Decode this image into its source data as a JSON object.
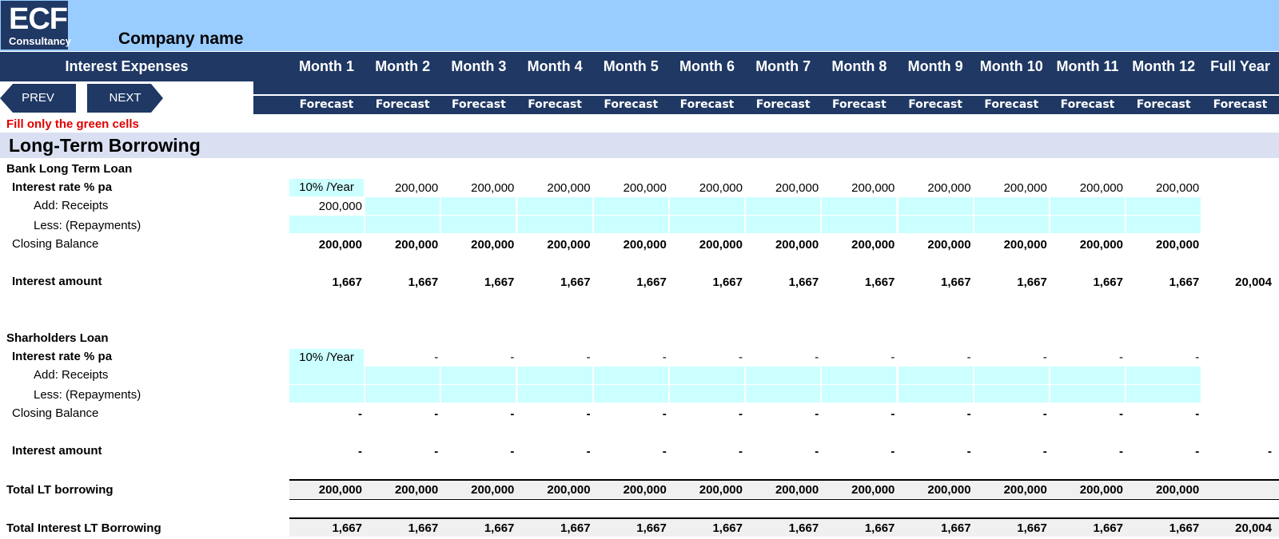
{
  "header": {
    "logo_big": "ECF",
    "logo_small": "Consultancy",
    "company": "Company name",
    "title": "Interest Expenses",
    "months": [
      "Month 1",
      "Month 2",
      "Month 3",
      "Month 4",
      "Month 5",
      "Month 6",
      "Month 7",
      "Month 8",
      "Month 9",
      "Month 10",
      "Month 11",
      "Month 12",
      "Full Year"
    ],
    "forecast_label": "Forecast",
    "prev": "PREV",
    "next": "NEXT"
  },
  "note": "Fill only the green cells",
  "section_title": "Long-Term Borrowing",
  "labels": {
    "bank_loan": "Bank Long Term Loan",
    "rate": "Interest rate % pa",
    "receipts": "Add: Receipts",
    "repayments": "Less: (Repayments)",
    "closing": "Closing Balance",
    "interest": "Interest amount",
    "shareholders_loan": "Sharholders Loan",
    "total_lt": "Total LT borrowing",
    "total_interest": "Total Interest LT Borrowing"
  },
  "bank": {
    "rate": "10% /Year",
    "rate_row": [
      "200,000",
      "200,000",
      "200,000",
      "200,000",
      "200,000",
      "200,000",
      "200,000",
      "200,000",
      "200,000",
      "200,000",
      "200,000"
    ],
    "receipts": [
      "200,000",
      "",
      "",
      "",
      "",
      "",
      "",
      "",
      "",
      "",
      "",
      ""
    ],
    "closing": [
      "200,000",
      "200,000",
      "200,000",
      "200,000",
      "200,000",
      "200,000",
      "200,000",
      "200,000",
      "200,000",
      "200,000",
      "200,000",
      "200,000",
      ""
    ],
    "interest": [
      "1,667",
      "1,667",
      "1,667",
      "1,667",
      "1,667",
      "1,667",
      "1,667",
      "1,667",
      "1,667",
      "1,667",
      "1,667",
      "1,667",
      "20,004"
    ]
  },
  "shareholders": {
    "rate": "10% /Year",
    "rate_row": [
      "-",
      "-",
      "-",
      "-",
      "-",
      "-",
      "-",
      "-",
      "-",
      "-",
      "-"
    ],
    "closing": [
      "-",
      "-",
      "-",
      "-",
      "-",
      "-",
      "-",
      "-",
      "-",
      "-",
      "-",
      "-",
      ""
    ],
    "interest": [
      "-",
      "-",
      "-",
      "-",
      "-",
      "-",
      "-",
      "-",
      "-",
      "-",
      "-",
      "-",
      "-"
    ]
  },
  "totals": {
    "lt": [
      "200,000",
      "200,000",
      "200,000",
      "200,000",
      "200,000",
      "200,000",
      "200,000",
      "200,000",
      "200,000",
      "200,000",
      "200,000",
      "200,000",
      ""
    ],
    "interest": [
      "1,667",
      "1,667",
      "1,667",
      "1,667",
      "1,667",
      "1,667",
      "1,667",
      "1,667",
      "1,667",
      "1,667",
      "1,667",
      "1,667",
      "20,004"
    ]
  },
  "colors": {
    "navy": "#1f3864",
    "sky": "#99ccff",
    "green_cell": "#ccffff",
    "section": "#dae0f2",
    "note": "#e00000"
  }
}
